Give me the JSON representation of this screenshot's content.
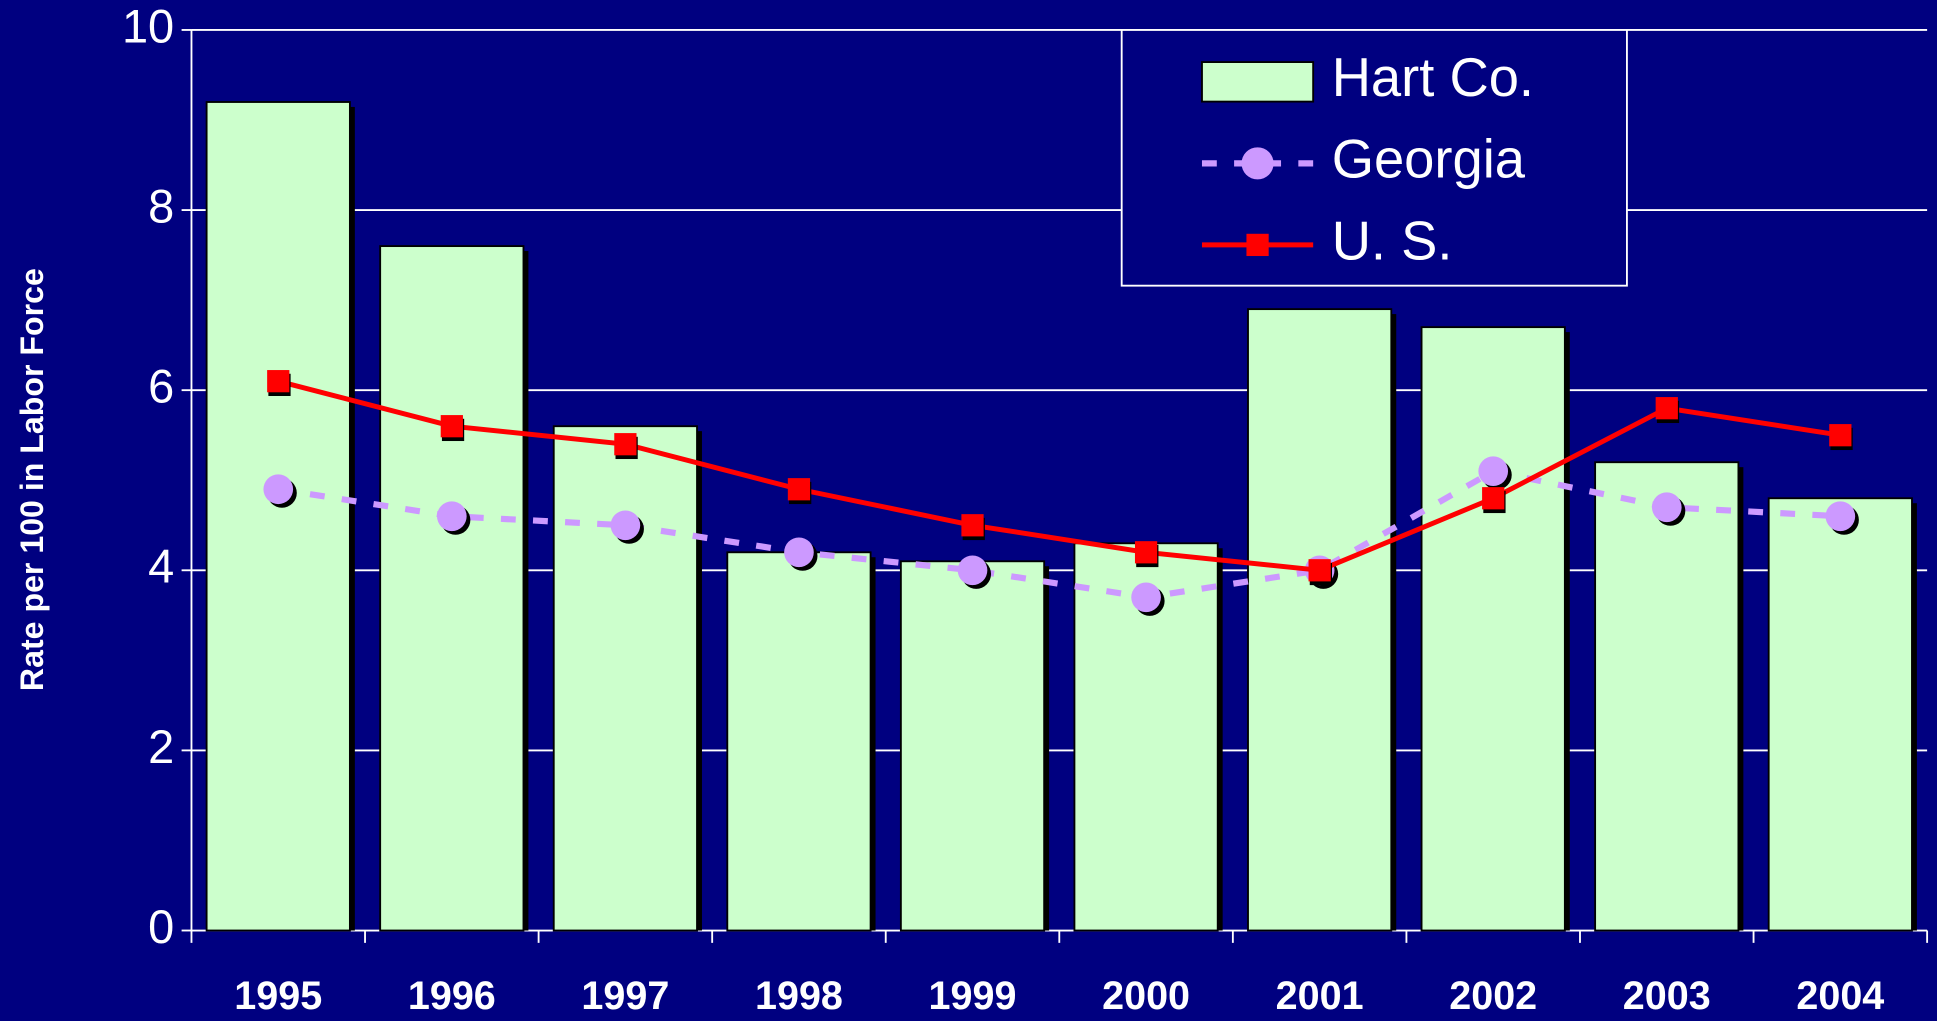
{
  "chart_data": {
    "type": "bar_line",
    "y_label": "Rate per 100 in Labor Force",
    "categories": [
      "1995",
      "1996",
      "1997",
      "1998",
      "1999",
      "2000",
      "2001",
      "2002",
      "2003",
      "2004"
    ],
    "series": [
      {
        "name": "Hart Co.",
        "type": "bar",
        "color": "#ccffcc",
        "values": [
          9.2,
          7.6,
          5.6,
          4.2,
          4.1,
          4.3,
          6.9,
          6.7,
          5.2,
          4.8
        ]
      },
      {
        "name": "Georgia",
        "type": "line",
        "style": "dashed",
        "marker": "circle",
        "color": "#cc99ff",
        "values": [
          4.9,
          4.6,
          4.5,
          4.2,
          4.0,
          3.7,
          4.0,
          5.1,
          4.7,
          4.6
        ]
      },
      {
        "name": "U. S.",
        "type": "line",
        "style": "solid",
        "marker": "square",
        "color": "#ff0000",
        "values": [
          6.1,
          5.6,
          5.4,
          4.9,
          4.5,
          4.2,
          4.0,
          4.8,
          5.8,
          5.5
        ]
      }
    ],
    "ylim": [
      0,
      10
    ],
    "yticks": [
      0,
      2,
      4,
      6,
      8,
      10
    ],
    "grid": true,
    "legend": "upper right"
  }
}
